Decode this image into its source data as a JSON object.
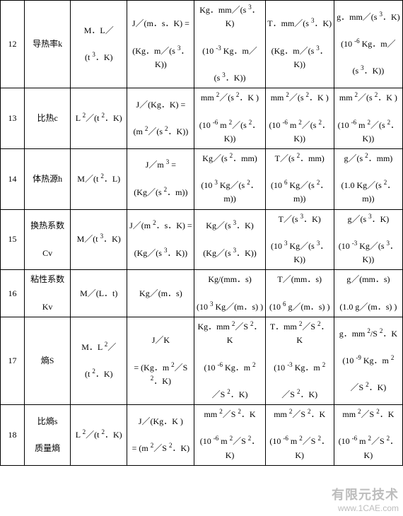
{
  "watermark": {
    "line1": "有限元技术",
    "line2": "www.1CAE.com"
  },
  "rows": [
    {
      "num": "12",
      "name": "导热率k",
      "dim": "M．L／\n\n(t {3}．K)",
      "c3": "J／(m．s．K) =\n\n(Kg．m／(s {3}．K))",
      "c4": "Kg．mm／(s {3}．K)\n\n(10 {-3} Kg．m／\n\n(s {3}．K))",
      "c5": "T．mm／(s {3}．K)\n\n(Kg．m／(s {3}．K))",
      "c6": "g．mm／(s {3}．K)\n\n(10 {-6} Kg．m／\n\n(s {3}．K))"
    },
    {
      "num": "13",
      "name": "比热c",
      "dim": "L {2}／(t {2}．K)",
      "c3": "J／(Kg．K) =\n\n(m {2}／(s {2}．K))",
      "c4": "mm {2}／(s {2}．K )\n\n(10 {-6} m {2}／(s {2}．K))",
      "c5": "mm {2}／(s {2}．K )\n\n(10 {-6} m {2}／(s {2}．K))",
      "c6": "mm {2}／(s {2}．K )\n\n(10 {-6} m {2}／(s {2}．K))"
    },
    {
      "num": "14",
      "name": "体热源h",
      "dim": "M／(t {2}．L)",
      "c3": "J／m {3} =\n\n(Kg／(s {2}．m))",
      "c4": "Kg／(s {2}．mm)\n\n(10 {3} Kg／(s {2}．m))",
      "c5": "T／(s {2}．mm)\n\n(10 {6} Kg／(s {2}．m))",
      "c6": "g／(s {2}．mm)\n\n(1.0 Kg／(s {2}．m))"
    },
    {
      "num": "15",
      "name": "换热系数\n\nCv",
      "dim": "M／(t {3}．K)",
      "c3": "J／(m {2}．s．K) =\n\n(Kg／(s {3}．K))",
      "c4": "Kg／(s {3}．K)\n\n(Kg／(s {3}．K))",
      "c5": "T／(s {3}．K)\n\n(10 {3} Kg／(s {3}．K))",
      "c6": "g／(s {3}．K)\n\n(10 {-3} Kg／(s {3}．K))"
    },
    {
      "num": "16",
      "name": "粘性系数\n\nKv",
      "dim": "M／(L．t)",
      "c3": "Kg／(m．s)",
      "c4": "Kg/(mm．s)\n\n(10 {3} Kg／(m．s) )",
      "c5": "T／(mm．s)\n\n(10 {6} g／(m．s) )",
      "c6": "g／(mm．s)\n\n(1.0 g／(m．s) )"
    },
    {
      "num": "17",
      "name": "熵S",
      "dim": "M．L {2}／\n\n(t {2}．K)",
      "c3": "J／K\n\n= (Kg．m {2}／S {2}．K)",
      "c4": "Kg．mm {2}／S {2}．K\n\n(10 {-6} Kg．m {2}\n\n／S {2}．K)",
      "c5": "T．mm {2}／S {2}．K\n\n(10 {-3} Kg．m {2}\n\n／S {2}．K)",
      "c6": "g．mm {2}/S {2}．K\n\n(10 {-9} Kg．m {2}\n\n／S {2}．K)"
    },
    {
      "num": "18",
      "name": "比熵s\n\n质量熵",
      "dim": "L {2}／(t {2}．K)",
      "c3": "J／(Kg．K )\n\n= (m {2}／S {2}．K)",
      "c4": "mm {2}／S {2}．K\n\n(10 {-6} m {2}／S {2}．K)",
      "c5": "mm {2}／S {2}．K\n\n(10 {-6} m {2}／S {2}．K)",
      "c6": "mm {2}／S {2}．K\n\n(10 {-6} m {2}／S {2}．K)"
    }
  ]
}
